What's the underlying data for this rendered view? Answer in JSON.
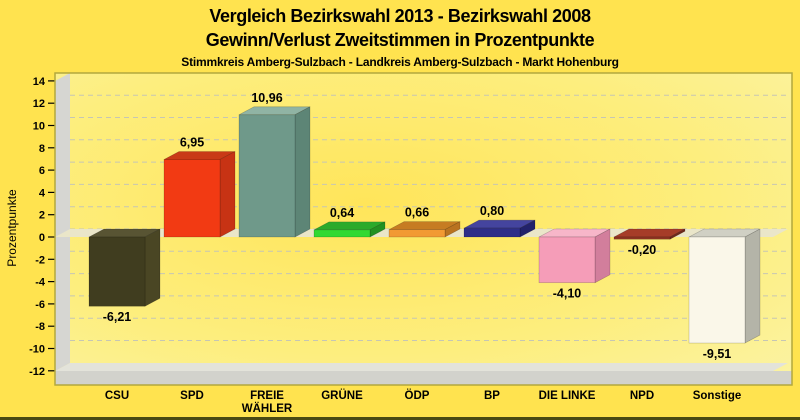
{
  "header": {
    "title_line1": "Vergleich Bezirkswahl 2013 - Bezirkswahl 2008",
    "title_line2": "Gewinn/Verlust Zweitstimmen in Prozentpunkte",
    "subtitle": "Stimmkreis Amberg-Sulzbach - Landkreis Amberg-Sulzbach - Markt Hohenburg"
  },
  "colors": {
    "background": "#ffe34f",
    "plot_border": "#b2a83e",
    "wall": "#d6d6d2",
    "floor_plane": "#e3e3da",
    "floor_slab": "#d2d2cc",
    "zero_band": "#eae6c9",
    "gridline": "#c6c6b4",
    "text": "#000000"
  },
  "chart_data": {
    "type": "bar",
    "style": "3d-column",
    "title": "Vergleich Bezirkswahl 2013 - Bezirkswahl 2008",
    "subtitle": "Gewinn/Verlust Zweitstimmen in Prozentpunkte",
    "footnote": "Stimmkreis Amberg-Sulzbach - Landkreis Amberg-Sulzbach - Markt Hohenburg",
    "xlabel": "",
    "ylabel": "Prozentpunkte",
    "ylim": [
      -12,
      14
    ],
    "ytick_step": 2,
    "yticks": [
      14,
      12,
      10,
      8,
      6,
      4,
      2,
      0,
      -2,
      -4,
      -6,
      -8,
      -10,
      -12
    ],
    "grid": "horizontal-dashed",
    "legend": "none",
    "decimal_separator": ",",
    "categories": [
      "CSU",
      "SPD",
      "FREIE WÄHLER",
      "GRÜNE",
      "ÖDP",
      "BP",
      "DIE LINKE",
      "NPD",
      "Sonstige"
    ],
    "category_label_lines": [
      [
        "CSU"
      ],
      [
        "SPD"
      ],
      [
        "FREIE",
        "WÄHLER"
      ],
      [
        "GRÜNE"
      ],
      [
        "ÖDP"
      ],
      [
        "BP"
      ],
      [
        "DIE LINKE"
      ],
      [
        "NPD"
      ],
      [
        "Sonstige"
      ]
    ],
    "values": [
      -6.21,
      6.95,
      10.96,
      0.64,
      0.66,
      0.8,
      -4.1,
      -0.2,
      -9.51
    ],
    "value_labels": [
      "-6,21",
      "6,95",
      "10,96",
      "0,64",
      "0,66",
      "0,80",
      "-4,10",
      "-0,20",
      "-9,51"
    ],
    "bar_colors": [
      {
        "front": "#403d1f",
        "top": "#585433",
        "side": "#4a4624"
      },
      {
        "front": "#f23a13",
        "top": "#c93a17",
        "side": "#c73314"
      },
      {
        "front": "#6f998a",
        "top": "#90b4a4",
        "side": "#5d8576"
      },
      {
        "front": "#32d932",
        "top": "#2baa2b",
        "side": "#229122"
      },
      {
        "front": "#f29a33",
        "top": "#c67c22",
        "side": "#b97320"
      },
      {
        "front": "#2e2e88",
        "top": "#44449e",
        "side": "#22226b"
      },
      {
        "front": "#f59db8",
        "top": "#f7b6c9",
        "side": "#d27e9c"
      },
      {
        "front": "#8f3423",
        "top": "#a63c28",
        "side": "#70281a"
      },
      {
        "front": "#faf7e9",
        "top": "#d0d0c4",
        "side": "#b4b4a8"
      }
    ]
  }
}
